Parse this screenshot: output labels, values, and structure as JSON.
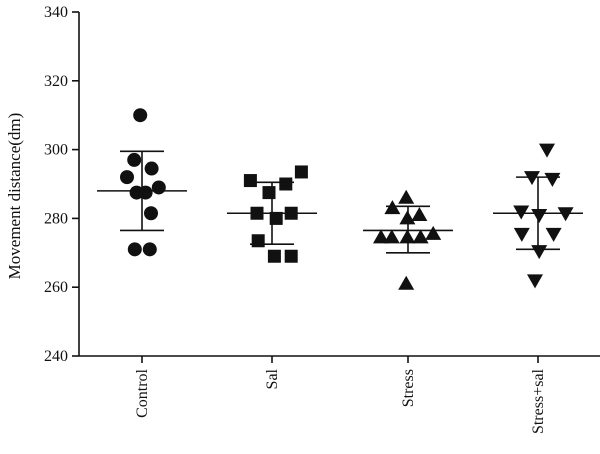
{
  "chart_data": {
    "type": "scatter",
    "ylabel": "Movement distance(dm)",
    "ylim": [
      240,
      340
    ],
    "yticks": [
      240,
      260,
      280,
      300,
      320,
      340
    ],
    "categories": [
      "Control",
      "Sal",
      "Stress",
      "Stress+sal"
    ],
    "grid": false,
    "series": [
      {
        "category": "Control",
        "marker": "circle",
        "points": [
          {
            "offset": -0.03,
            "y": 310
          },
          {
            "offset": -0.13,
            "y": 297
          },
          {
            "offset": 0.16,
            "y": 294.5
          },
          {
            "offset": -0.25,
            "y": 292
          },
          {
            "offset": -0.09,
            "y": 287.5
          },
          {
            "offset": 0.06,
            "y": 287.5
          },
          {
            "offset": 0.28,
            "y": 289
          },
          {
            "offset": 0.15,
            "y": 281.5
          },
          {
            "offset": -0.12,
            "y": 271
          },
          {
            "offset": 0.13,
            "y": 271
          }
        ],
        "mean": 288,
        "sd_low": 276.5,
        "sd_high": 299.5
      },
      {
        "category": "Sal",
        "marker": "square",
        "points": [
          {
            "offset": -0.36,
            "y": 291
          },
          {
            "offset": 0.23,
            "y": 290
          },
          {
            "offset": 0.49,
            "y": 293.5
          },
          {
            "offset": -0.05,
            "y": 287.5
          },
          {
            "offset": -0.25,
            "y": 281.5
          },
          {
            "offset": 0.07,
            "y": 280
          },
          {
            "offset": 0.32,
            "y": 281.5
          },
          {
            "offset": -0.23,
            "y": 273.5
          },
          {
            "offset": 0.04,
            "y": 269
          },
          {
            "offset": 0.32,
            "y": 269
          }
        ],
        "mean": 281.5,
        "sd_low": 272.5,
        "sd_high": 290.5
      },
      {
        "category": "Stress",
        "marker": "triangle-up",
        "points": [
          {
            "offset": -0.26,
            "y": 283
          },
          {
            "offset": -0.03,
            "y": 286
          },
          {
            "offset": -0.01,
            "y": 280
          },
          {
            "offset": 0.19,
            "y": 281
          },
          {
            "offset": -0.45,
            "y": 274.5
          },
          {
            "offset": -0.27,
            "y": 274.5
          },
          {
            "offset": -0.01,
            "y": 274.5
          },
          {
            "offset": 0.21,
            "y": 274.5
          },
          {
            "offset": 0.42,
            "y": 275.5
          },
          {
            "offset": -0.03,
            "y": 261
          }
        ],
        "mean": 276.5,
        "sd_low": 270,
        "sd_high": 283.5
      },
      {
        "category": "Stress+sal",
        "marker": "triangle-down",
        "points": [
          {
            "offset": 0.15,
            "y": 300
          },
          {
            "offset": -0.1,
            "y": 292
          },
          {
            "offset": 0.24,
            "y": 291.5
          },
          {
            "offset": -0.28,
            "y": 282
          },
          {
            "offset": 0.02,
            "y": 281
          },
          {
            "offset": 0.46,
            "y": 281.5
          },
          {
            "offset": -0.27,
            "y": 275.5
          },
          {
            "offset": 0.26,
            "y": 275.5
          },
          {
            "offset": 0.02,
            "y": 270.5
          },
          {
            "offset": -0.05,
            "y": 262
          }
        ],
        "mean": 281.5,
        "sd_low": 271,
        "sd_high": 292
      }
    ]
  }
}
